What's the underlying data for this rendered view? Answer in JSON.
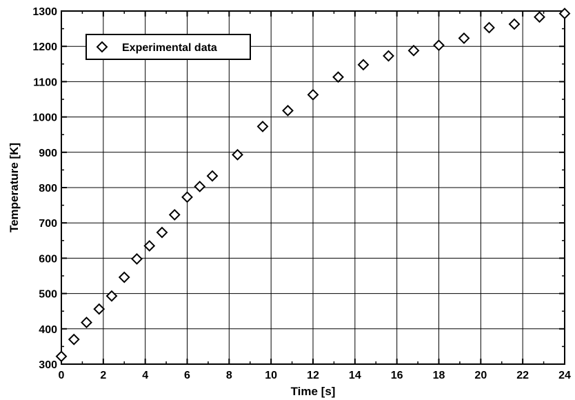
{
  "chart_data": {
    "type": "scatter",
    "xlabel": "Time [s]",
    "ylabel": "Temperature [K]",
    "xlim": [
      0,
      24
    ],
    "ylim": [
      300,
      1300
    ],
    "xticks": [
      "0",
      "2",
      "4",
      "6",
      "8",
      "10",
      "12",
      "14",
      "16",
      "18",
      "20",
      "22",
      "24"
    ],
    "yticks": [
      "300",
      "400",
      "500",
      "600",
      "700",
      "800",
      "900",
      "1000",
      "1100",
      "1200",
      "1300"
    ],
    "grid": true,
    "legend_position": "top-left",
    "marker": "open-diamond",
    "series": [
      {
        "name": "Experimental data",
        "x": [
          0,
          0.6,
          1.2,
          1.8,
          2.4,
          3.0,
          3.6,
          4.2,
          4.8,
          5.4,
          6.0,
          6.6,
          7.2,
          8.4,
          9.6,
          10.8,
          12.0,
          13.2,
          14.4,
          15.6,
          16.8,
          18.0,
          19.2,
          20.4,
          21.6,
          22.8,
          24.0
        ],
        "y": [
          322,
          370,
          418,
          456,
          493,
          546,
          598,
          635,
          673,
          723,
          773,
          803,
          833,
          893,
          973,
          1018,
          1063,
          1113,
          1148,
          1173,
          1188,
          1203,
          1223,
          1253,
          1263,
          1283,
          1293
        ]
      }
    ]
  }
}
